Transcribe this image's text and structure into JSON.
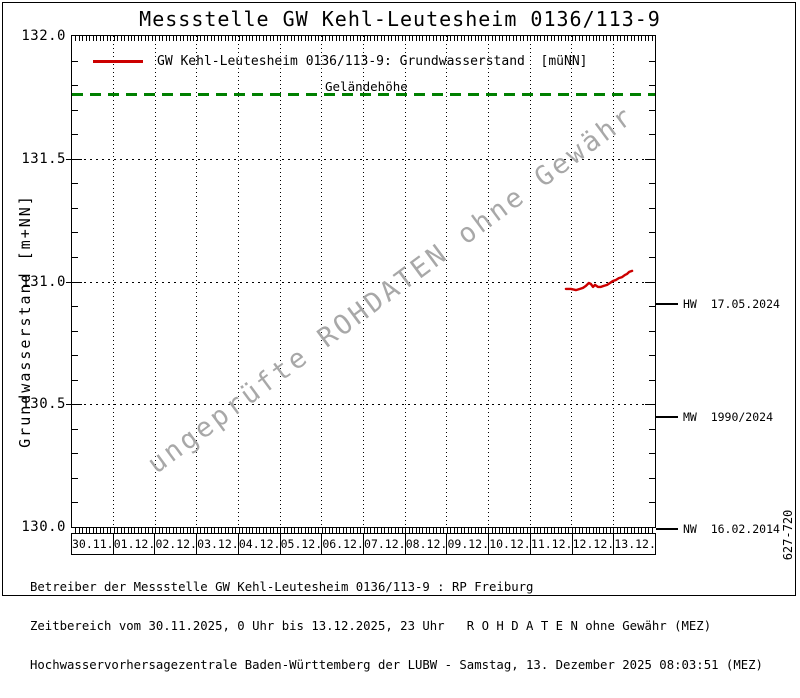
{
  "title": "Messstelle GW Kehl-Leutesheim 0136/113-9",
  "legend": {
    "series_label": "GW Kehl-Leutesheim 0136/113-9: Grundwasserstand  [müNN]",
    "series_color": "#cc0000"
  },
  "watermark": "ungeprüfte ROHDATEN ohne Gewähr",
  "side_label": "627-720",
  "footer": {
    "line1": "Betreiber der Messstelle GW Kehl-Leutesheim 0136/113-9 : RP Freiburg",
    "line2": "Zeitbereich vom 30.11.2025, 0 Uhr bis 13.12.2025, 23 Uhr   R O H D A T E N ohne Gewähr (MEZ)",
    "line3": "Hochwasservorhersagezentrale Baden-Württemberg der LUBW - Samstag, 13. Dezember 2025 08:03:51 (MEZ)"
  },
  "colors": {
    "series_red": "#cc0000",
    "gelaende_green": "#008000",
    "watermark_gray": "#a8a8a8",
    "axis_black": "#000000",
    "background": "#ffffff"
  },
  "chart_data": {
    "type": "line",
    "title": "Messstelle GW Kehl-Leutesheim 0136/113-9",
    "xlabel": "",
    "ylabel": "Grundwasserstand [m+NN]",
    "ylim": [
      130.0,
      132.0
    ],
    "xlim_days": [
      0,
      14
    ],
    "y_tick_labels": [
      "132.0",
      "131.5",
      "131.0",
      "130.5",
      "130.0"
    ],
    "y_minor_step": 0.1,
    "x_tick_labels": [
      "30.11.",
      "01.12.",
      "02.12.",
      "03.12.",
      "04.12.",
      "05.12.",
      "06.12.",
      "07.12.",
      "08.12.",
      "09.12.",
      "10.12.",
      "11.12.",
      "12.12.",
      "13.12."
    ],
    "x_minor_ticks_per_day": 12,
    "grid": true,
    "legend_position": "top-left-inside",
    "series": [
      {
        "name": "GW Kehl-Leutesheim 0136/113-9: Grundwasserstand [müNN]",
        "color": "#cc0000",
        "points_day_value": [
          [
            11.86,
            130.97
          ],
          [
            11.98,
            130.97
          ],
          [
            12.1,
            130.965
          ],
          [
            12.2,
            130.97
          ],
          [
            12.27,
            130.974
          ],
          [
            12.34,
            130.982
          ],
          [
            12.41,
            130.994
          ],
          [
            12.46,
            130.99
          ],
          [
            12.51,
            130.978
          ],
          [
            12.56,
            130.986
          ],
          [
            12.63,
            130.978
          ],
          [
            12.7,
            130.978
          ],
          [
            12.77,
            130.982
          ],
          [
            12.85,
            130.986
          ],
          [
            12.92,
            130.994
          ],
          [
            12.99,
            131.002
          ],
          [
            13.06,
            131.006
          ],
          [
            13.13,
            131.014
          ],
          [
            13.21,
            131.018
          ],
          [
            13.28,
            131.027
          ],
          [
            13.33,
            131.031
          ],
          [
            13.38,
            131.039
          ],
          [
            13.45,
            131.043
          ]
        ]
      }
    ],
    "reference_lines": [
      {
        "name": "Geländehöhe",
        "value": 131.76,
        "color": "#008000",
        "style": "dashed",
        "side": "in-plot"
      },
      {
        "name": "HW  17.05.2024",
        "value": 130.91,
        "color": "#000000",
        "style": "tick",
        "side": "right"
      },
      {
        "name": "MW  1990/2024",
        "value": 130.45,
        "color": "#000000",
        "style": "tick",
        "side": "right"
      },
      {
        "name": "NW  16.02.2014",
        "value": 129.99,
        "color": "#000000",
        "style": "tick",
        "side": "right"
      }
    ]
  }
}
